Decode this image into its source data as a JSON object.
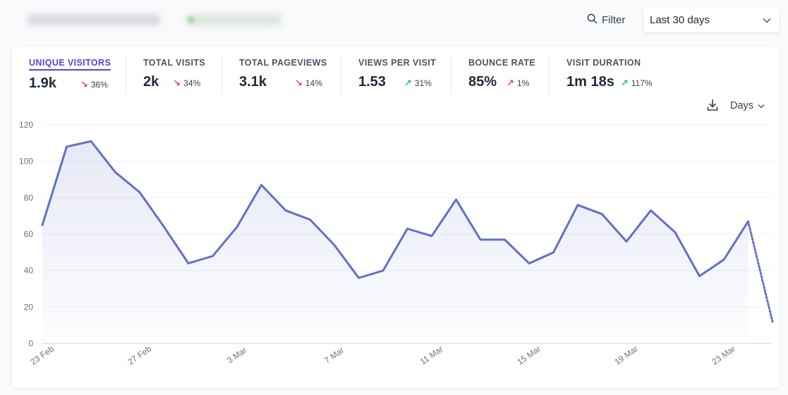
{
  "header": {
    "filter_label": "Filter",
    "period_value": "Last 30 days"
  },
  "metrics": [
    {
      "label": "Unique visitors",
      "value": "1.9k",
      "change": "36%",
      "direction": "down",
      "active": true
    },
    {
      "label": "Total visits",
      "value": "2k",
      "change": "34%",
      "direction": "down",
      "active": false
    },
    {
      "label": "Total pageviews",
      "value": "3.1k",
      "change": "14%",
      "direction": "down",
      "active": false
    },
    {
      "label": "Views per visit",
      "value": "1.53",
      "change": "31%",
      "direction": "up",
      "active": false
    },
    {
      "label": "Bounce rate",
      "value": "85%",
      "change": "1%",
      "direction": "up",
      "active": false
    },
    {
      "label": "Visit duration",
      "value": "1m 18s",
      "change": "117%",
      "direction": "up",
      "active": false
    }
  ],
  "controls": {
    "interval_label": "Days",
    "download_icon": "download-icon"
  },
  "colors": {
    "accent": "#4f46e5",
    "line": "#6370c8",
    "down": "#ef4444",
    "up": "#22c55e"
  },
  "chart_data": {
    "type": "line",
    "x": [
      "23 Feb",
      "24 Feb",
      "25 Feb",
      "26 Feb",
      "27 Feb",
      "28 Feb",
      "1 Mar",
      "2 Mar",
      "3 Mar",
      "4 Mar",
      "5 Mar",
      "6 Mar",
      "7 Mar",
      "8 Mar",
      "9 Mar",
      "10 Mar",
      "11 Mar",
      "12 Mar",
      "13 Mar",
      "14 Mar",
      "15 Mar",
      "16 Mar",
      "17 Mar",
      "18 Mar",
      "19 Mar",
      "20 Mar",
      "21 Mar",
      "22 Mar",
      "23 Mar",
      "24 Mar",
      "25 Mar"
    ],
    "x_tick_labels": [
      "23 Feb",
      "27 Feb",
      "3 Mar",
      "7 Mar",
      "11 Mar",
      "15 Mar",
      "19 Mar",
      "23 Mar"
    ],
    "series": [
      {
        "values": [
          65,
          108,
          111,
          94,
          83,
          64,
          44,
          48,
          64,
          87,
          73,
          68,
          54,
          36,
          40,
          63,
          59,
          79,
          57,
          57,
          44,
          50,
          76,
          71,
          56,
          73,
          61,
          37,
          46,
          67,
          12
        ]
      }
    ],
    "partial_last_point": true,
    "ylim": [
      0,
      120
    ],
    "y_ticks": [
      0,
      20,
      40,
      60,
      80,
      100,
      120
    ],
    "grid": true,
    "fill": true
  }
}
